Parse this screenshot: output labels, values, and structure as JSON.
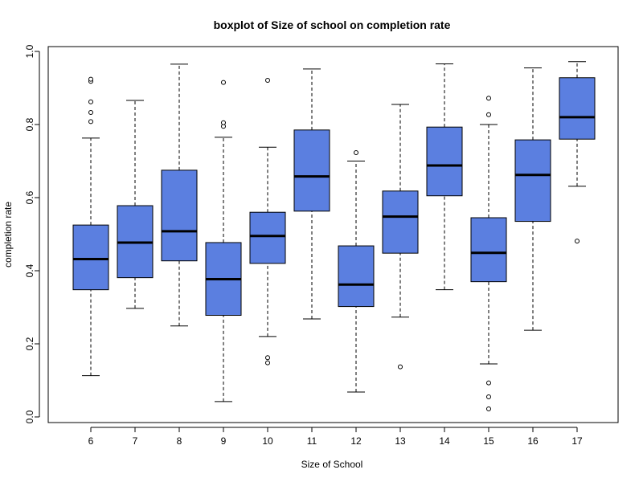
{
  "chart_data": {
    "type": "boxplot",
    "title": "boxplot of Size of school on completion rate",
    "xlabel": "Size of School",
    "ylabel": "completion rate",
    "ylim": [
      0.0,
      1.0
    ],
    "yticks": [
      "0.0",
      "0.2",
      "0.4",
      "0.6",
      "0.8",
      "1.0"
    ],
    "grid": false,
    "box_fill": "#5B7FE0",
    "box_stroke": "#000000",
    "categories": [
      "6",
      "7",
      "8",
      "9",
      "10",
      "11",
      "12",
      "13",
      "14",
      "15",
      "16",
      "17"
    ],
    "boxes": [
      {
        "category": "6",
        "whisker_low": 0.113,
        "q1": 0.348,
        "median": 0.432,
        "q3": 0.525,
        "whisker_high": 0.763,
        "outliers": [
          0.808,
          0.833,
          0.862,
          0.918,
          0.924
        ]
      },
      {
        "category": "7",
        "whisker_low": 0.297,
        "q1": 0.381,
        "median": 0.477,
        "q3": 0.578,
        "whisker_high": 0.866,
        "outliers": []
      },
      {
        "category": "8",
        "whisker_low": 0.249,
        "q1": 0.427,
        "median": 0.508,
        "q3": 0.675,
        "whisker_high": 0.965,
        "outliers": []
      },
      {
        "category": "9",
        "whisker_low": 0.042,
        "q1": 0.278,
        "median": 0.377,
        "q3": 0.477,
        "whisker_high": 0.765,
        "outliers": [
          0.795,
          0.805,
          0.915
        ]
      },
      {
        "category": "10",
        "whisker_low": 0.22,
        "q1": 0.42,
        "median": 0.495,
        "q3": 0.56,
        "whisker_high": 0.738,
        "outliers": [
          0.148,
          0.162,
          0.921
        ]
      },
      {
        "category": "11",
        "whisker_low": 0.268,
        "q1": 0.563,
        "median": 0.658,
        "q3": 0.785,
        "whisker_high": 0.952,
        "outliers": []
      },
      {
        "category": "12",
        "whisker_low": 0.068,
        "q1": 0.302,
        "median": 0.362,
        "q3": 0.468,
        "whisker_high": 0.7,
        "outliers": [
          0.723
        ]
      },
      {
        "category": "13",
        "whisker_low": 0.273,
        "q1": 0.448,
        "median": 0.548,
        "q3": 0.618,
        "whisker_high": 0.855,
        "outliers": [
          0.137
        ]
      },
      {
        "category": "14",
        "whisker_low": 0.348,
        "q1": 0.605,
        "median": 0.688,
        "q3": 0.793,
        "whisker_high": 0.966,
        "outliers": []
      },
      {
        "category": "15",
        "whisker_low": 0.145,
        "q1": 0.37,
        "median": 0.449,
        "q3": 0.545,
        "whisker_high": 0.8,
        "outliers": [
          0.022,
          0.055,
          0.093,
          0.827,
          0.872
        ]
      },
      {
        "category": "16",
        "whisker_low": 0.237,
        "q1": 0.535,
        "median": 0.662,
        "q3": 0.758,
        "whisker_high": 0.955,
        "outliers": []
      },
      {
        "category": "17",
        "whisker_low": 0.631,
        "q1": 0.76,
        "median": 0.82,
        "q3": 0.928,
        "whisker_high": 0.972,
        "outliers": [
          0.481
        ]
      }
    ]
  }
}
